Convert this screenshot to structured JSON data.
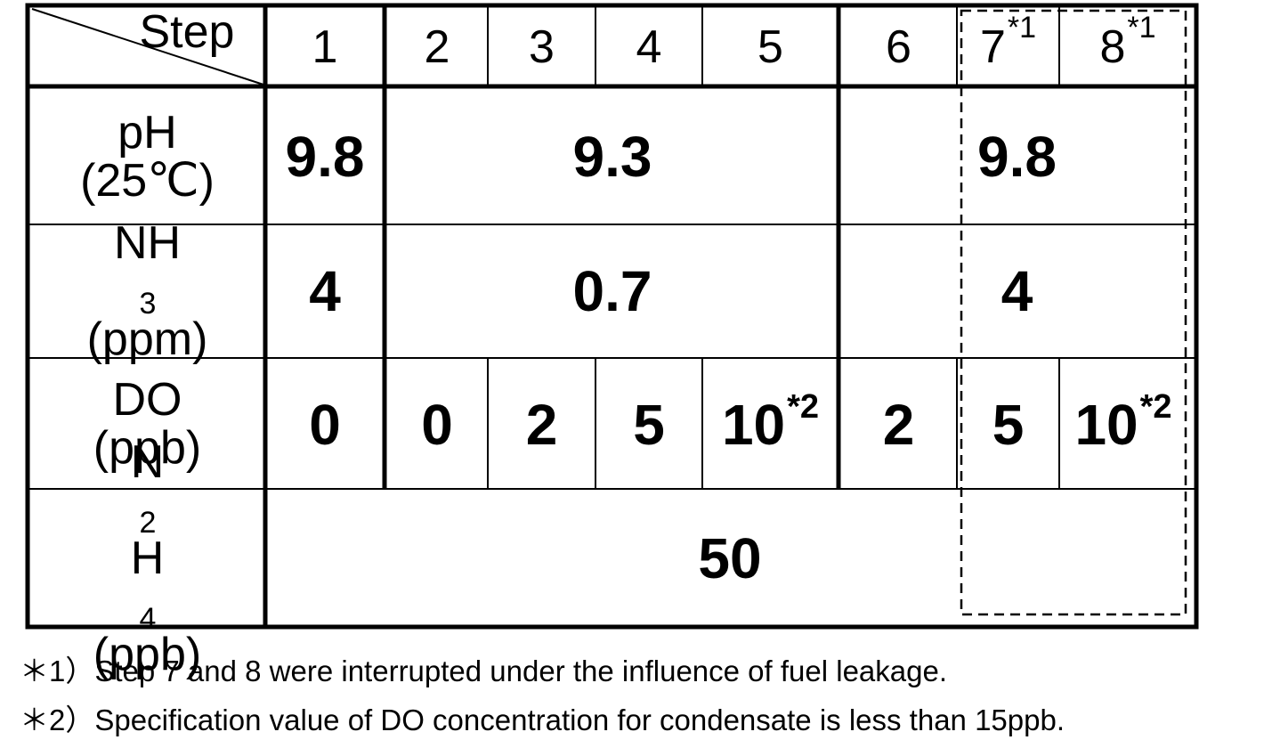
{
  "header": {
    "corner_label": "Step",
    "steps": [
      "1",
      "2",
      "3",
      "4",
      "5",
      "6",
      "7",
      "8"
    ],
    "step7_mark": "*1",
    "step8_mark": "*1"
  },
  "rows": {
    "ph": {
      "label_line1": "pH",
      "label_line2": "(25℃)",
      "step1": "9.8",
      "steps2_5": "9.3",
      "steps7_8": "9.8"
    },
    "nh3": {
      "label_main": "NH",
      "label_sub": "3",
      "label_line2": "(ppm)",
      "step1": "4",
      "steps2_5": "0.7",
      "steps7_8": "4"
    },
    "do": {
      "label_line1": "DO",
      "label_line2": "(ppb)",
      "values": [
        "0",
        "0",
        "2",
        "5",
        "10",
        "2",
        "5",
        "10"
      ],
      "mark": "*2"
    },
    "n2h4": {
      "label_n": "N",
      "label_n_sub": "2",
      "label_h": "H",
      "label_h_sub": "4",
      "label_line2": "(ppb)",
      "value": "50"
    }
  },
  "notes": [
    "＊1）Step 7 and 8 were interrupted under the influence of fuel leakage.",
    "＊2）Specification value of DO concentration for condensate is less than 15ppb."
  ]
}
